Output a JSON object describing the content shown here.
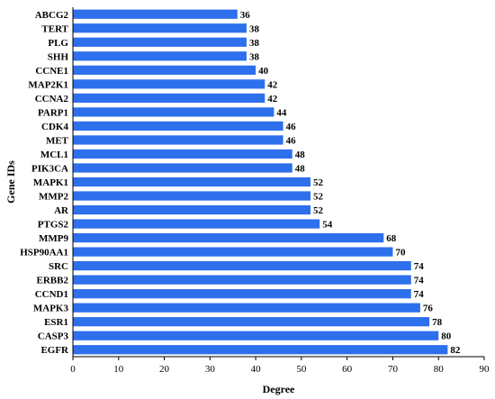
{
  "chart_data": {
    "type": "bar",
    "orientation": "horizontal",
    "title": "",
    "xlabel": "Degree",
    "ylabel": "Gene IDs",
    "xlim": [
      0,
      90
    ],
    "xticks": [
      0,
      10,
      20,
      30,
      40,
      50,
      60,
      70,
      80,
      90
    ],
    "grid": false,
    "legend": "none",
    "bar_color": "#2E6FEB",
    "categories": [
      "ABCG2",
      "TERT",
      "PLG",
      "SHH",
      "CCNE1",
      "MAP2K1",
      "CCNA2",
      "PARP1",
      "CDK4",
      "MET",
      "MCL1",
      "PIK3CA",
      "MAPK1",
      "MMP2",
      "AR",
      "PTGS2",
      "MMP9",
      "HSP90AA1",
      "SRC",
      "ERBB2",
      "CCND1",
      "MAPK3",
      "ESR1",
      "CASP3",
      "EGFR"
    ],
    "values": [
      36,
      38,
      38,
      38,
      40,
      42,
      42,
      44,
      46,
      46,
      48,
      48,
      52,
      52,
      52,
      54,
      68,
      70,
      74,
      74,
      74,
      76,
      78,
      80,
      82
    ]
  }
}
